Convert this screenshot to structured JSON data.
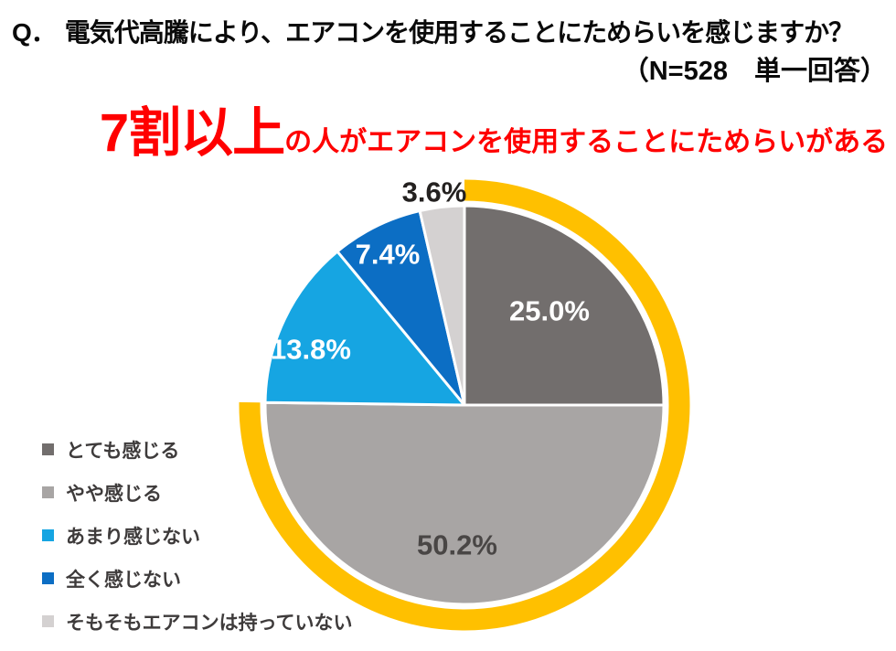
{
  "question": {
    "prefix": "Q．",
    "text": "電気代高騰により、エアコンを使用することにためらいを感じますか？",
    "sample": "（N=528　単一回答）"
  },
  "headline": {
    "emphasis": "7割以上",
    "rest": "の人がエアコンを使用することにためらいがある",
    "color": "#FF0000"
  },
  "chart_data": {
    "type": "pie",
    "title": "",
    "start_angle_deg": 0,
    "direction": "clockwise",
    "legend_position": "bottom-left",
    "slices": [
      {
        "label": "とても感じる",
        "value": 25.0,
        "display": "25.0%",
        "color": "#726E6D",
        "label_color": "#FFFFFF"
      },
      {
        "label": "やや感じる",
        "value": 50.2,
        "display": "50.2%",
        "color": "#A8A5A4",
        "label_color": "#494645"
      },
      {
        "label": "あまり感じない",
        "value": 13.8,
        "display": "13.8%",
        "color": "#16A5E2",
        "label_color": "#FFFFFF"
      },
      {
        "label": "全く感じない",
        "value": 7.4,
        "display": "7.4%",
        "color": "#0C6EC4",
        "label_color": "#FFFFFF"
      },
      {
        "label": "そもそもエアコンは持っていない",
        "value": 3.6,
        "display": "3.6%",
        "color": "#D4D1D1",
        "label_color": "#242120"
      }
    ],
    "highlight_arc": {
      "covers_labels": [
        "とても感じる",
        "やや感じる"
      ],
      "from_pct": 0,
      "to_pct": 75.2,
      "color": "#FFC000"
    }
  }
}
